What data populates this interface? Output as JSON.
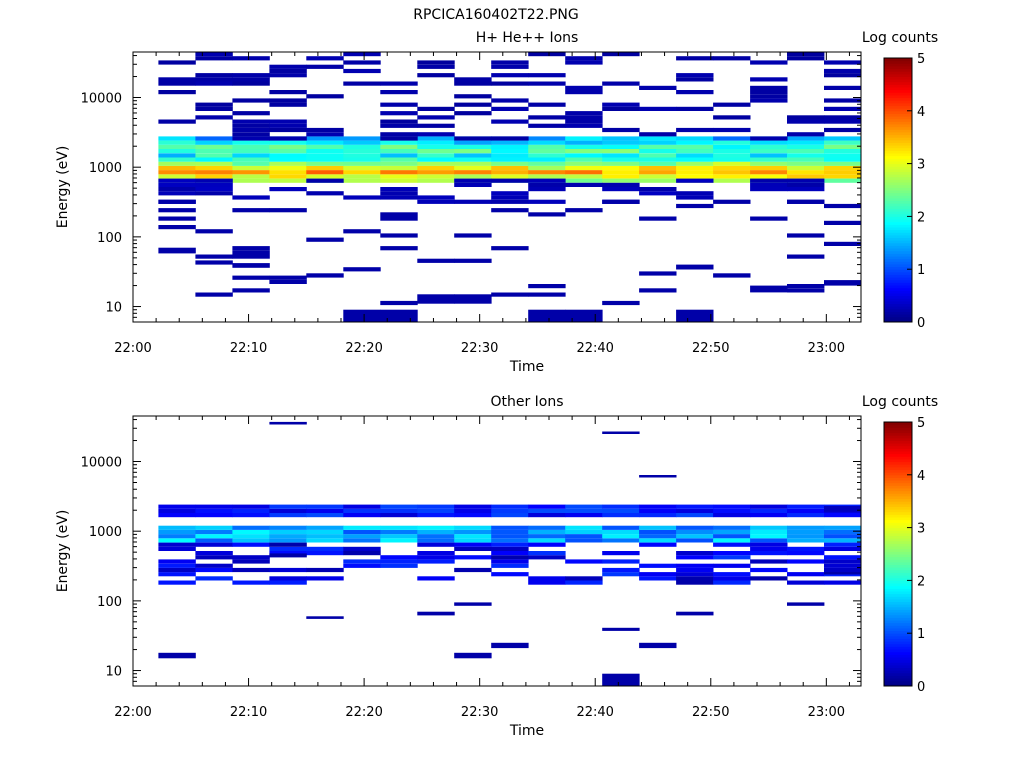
{
  "figure_title": "RPCICA160402T22.PNG",
  "chart_data": [
    {
      "type": "heatmap",
      "title": "H+ He++ Ions",
      "xlabel": "Time",
      "ylabel": "Energy (eV)",
      "x_ticks": [
        "22:00",
        "22:10",
        "22:20",
        "22:30",
        "22:40",
        "22:50",
        "23:00"
      ],
      "y_ticks": [
        "10",
        "100",
        "1000",
        "10000"
      ],
      "y_scale": "log",
      "ylim": [
        6,
        45000
      ],
      "x_range_minutes": [
        0,
        63
      ],
      "colorbar": {
        "label": "Log counts",
        "ticks": [
          "0",
          "1",
          "2",
          "3",
          "4",
          "5"
        ],
        "range": [
          0,
          5
        ]
      },
      "time_bins_start_minutes": [
        2.2,
        5.4,
        8.6,
        11.8,
        15.0,
        18.2,
        21.4,
        24.6,
        27.8,
        31.0,
        34.2,
        37.4,
        40.6,
        43.8,
        47.0,
        50.2,
        53.4,
        56.6,
        59.8
      ],
      "time_bin_width_minutes": 3.2,
      "cells": [
        {
          "bins": "all",
          "e": 600,
          "e2": 1200,
          "c": "sp1"
        },
        {
          "bins": "all",
          "e": 1400,
          "e2": 2600,
          "c": "sp2"
        },
        {
          "bins": "all",
          "e": 330,
          "e2": 600,
          "c": "noise_lo"
        },
        {
          "bins": "all",
          "e": 2600,
          "e2": 45000,
          "c": "noise_hi"
        },
        {
          "bins": "all",
          "e": 12,
          "e2": 330,
          "c": "noise_vlo"
        },
        {
          "bins": [
            0
          ],
          "e": 58,
          "e2": 70,
          "v": 0.2
        },
        {
          "bins": [
            1
          ],
          "e": 40,
          "e2": 46,
          "v": 0.2
        },
        {
          "bins": [
            2
          ],
          "e": 36,
          "e2": 42,
          "v": 0.2
        },
        {
          "bins": [
            4
          ],
          "e": 26,
          "e2": 30,
          "v": 0.2
        },
        {
          "bins": [
            5,
            6
          ],
          "e": 6,
          "e2": 9,
          "v": 0.2
        },
        {
          "bins": [
            7,
            8
          ],
          "e": 11,
          "e2": 15,
          "v": 0.2
        },
        {
          "bins": [
            10,
            11
          ],
          "e": 6,
          "e2": 9,
          "v": 0.2
        },
        {
          "bins": [
            14
          ],
          "e": 6,
          "e2": 9,
          "v": 0.2
        },
        {
          "bins": [
            14
          ],
          "e": 34,
          "e2": 40,
          "v": 0.2
        },
        {
          "bins": [
            15
          ],
          "e": 26,
          "e2": 30,
          "v": 0.2
        },
        {
          "bins": [
            16
          ],
          "e": 16,
          "e2": 20,
          "v": 0.2
        },
        {
          "bins": [
            18
          ],
          "e": 20,
          "e2": 24,
          "v": 0.2
        }
      ]
    },
    {
      "type": "heatmap",
      "title": "Other Ions",
      "xlabel": "Time",
      "ylabel": "Energy (eV)",
      "x_ticks": [
        "22:00",
        "22:10",
        "22:20",
        "22:30",
        "22:40",
        "22:50",
        "23:00"
      ],
      "y_ticks": [
        "10",
        "100",
        "1000",
        "10000"
      ],
      "y_scale": "log",
      "ylim": [
        6,
        45000
      ],
      "x_range_minutes": [
        0,
        63
      ],
      "colorbar": {
        "label": "Log counts",
        "ticks": [
          "0",
          "1",
          "2",
          "3",
          "4",
          "5"
        ],
        "range": [
          0,
          5
        ]
      },
      "time_bins_start_minutes": [
        2.2,
        5.4,
        8.6,
        11.8,
        15.0,
        18.2,
        21.4,
        24.6,
        27.8,
        31.0,
        34.2,
        37.4,
        40.6,
        43.8,
        47.0,
        50.2,
        53.4,
        56.6,
        59.8
      ],
      "time_bin_width_minutes": 3.2,
      "cells": [
        {
          "bins": "all",
          "e": 700,
          "e2": 1050,
          "c": "sp1o"
        },
        {
          "bins": "all",
          "e": 1800,
          "e2": 2200,
          "c": "sp2o"
        },
        {
          "bins": "all",
          "e": 180,
          "e2": 600,
          "c": "noise_mid"
        },
        {
          "bins": [
            0
          ],
          "e": 15,
          "e2": 18,
          "v": 0.2
        },
        {
          "bins": [
            3
          ],
          "e": 34000,
          "e2": 37000,
          "v": 0.2
        },
        {
          "bins": [
            3
          ],
          "e": 420,
          "e2": 480,
          "v": 0.2
        },
        {
          "bins": [
            4
          ],
          "e": 55,
          "e2": 60,
          "v": 0.2
        },
        {
          "bins": [
            7
          ],
          "e": 62,
          "e2": 70,
          "v": 0.2
        },
        {
          "bins": [
            8
          ],
          "e": 15,
          "e2": 18,
          "v": 0.2
        },
        {
          "bins": [
            8
          ],
          "e": 85,
          "e2": 95,
          "v": 0.2
        },
        {
          "bins": [
            9
          ],
          "e": 21,
          "e2": 25,
          "v": 0.2
        },
        {
          "bins": [
            12
          ],
          "e": 6,
          "e2": 9,
          "v": 0.2
        },
        {
          "bins": [
            12
          ],
          "e": 37,
          "e2": 41,
          "v": 0.2
        },
        {
          "bins": [
            12
          ],
          "e": 25000,
          "e2": 27000,
          "v": 0.2
        },
        {
          "bins": [
            13
          ],
          "e": 21,
          "e2": 25,
          "v": 0.2
        },
        {
          "bins": [
            13
          ],
          "e": 6000,
          "e2": 6400,
          "v": 0.2
        },
        {
          "bins": [
            14
          ],
          "e": 62,
          "e2": 70,
          "v": 0.2
        },
        {
          "bins": [
            17
          ],
          "e": 85,
          "e2": 95,
          "v": 0.2
        },
        {
          "bins": [
            18
          ],
          "e": 1900,
          "e2": 2300,
          "v": 0.3
        },
        {
          "bins": [
            18
          ],
          "e": 240,
          "e2": 260,
          "v": 0.2
        }
      ]
    }
  ]
}
